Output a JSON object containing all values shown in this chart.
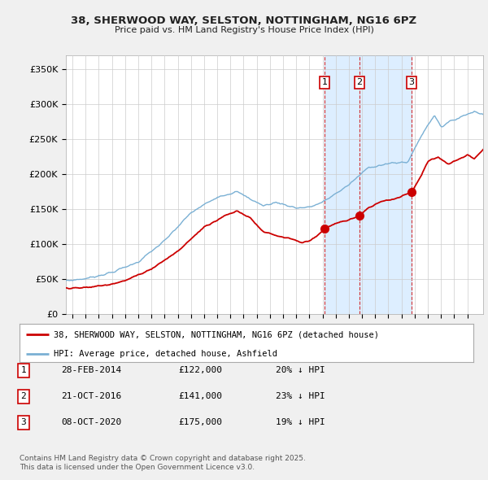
{
  "title1": "38, SHERWOOD WAY, SELSTON, NOTTINGHAM, NG16 6PZ",
  "title2": "Price paid vs. HM Land Registry's House Price Index (HPI)",
  "ylabel_ticks": [
    "£0",
    "£50K",
    "£100K",
    "£150K",
    "£200K",
    "£250K",
    "£300K",
    "£350K"
  ],
  "ytick_vals": [
    0,
    50000,
    100000,
    150000,
    200000,
    250000,
    300000,
    350000
  ],
  "ylim": [
    0,
    370000
  ],
  "sale_dates_num": [
    2014.16,
    2016.81,
    2020.77
  ],
  "sale_prices": [
    122000,
    141000,
    175000
  ],
  "sale_labels": [
    "1",
    "2",
    "3"
  ],
  "sale_date_strs": [
    "28-FEB-2014",
    "21-OCT-2016",
    "08-OCT-2020"
  ],
  "sale_price_strs": [
    "£122,000",
    "£141,000",
    "£175,000"
  ],
  "sale_hpi_strs": [
    "20% ↓ HPI",
    "23% ↓ HPI",
    "19% ↓ HPI"
  ],
  "legend_line1": "38, SHERWOOD WAY, SELSTON, NOTTINGHAM, NG16 6PZ (detached house)",
  "legend_line2": "HPI: Average price, detached house, Ashfield",
  "footer1": "Contains HM Land Registry data © Crown copyright and database right 2025.",
  "footer2": "This data is licensed under the Open Government Licence v3.0.",
  "sold_line_color": "#cc0000",
  "hpi_line_color": "#7ab0d4",
  "shade_color": "#ddeeff",
  "background_color": "#f0f0f0",
  "plot_bg_color": "#ffffff",
  "vline_color": "#cc0000",
  "grid_color": "#cccccc",
  "xlim_start": 1994.5,
  "xlim_end": 2026.2
}
